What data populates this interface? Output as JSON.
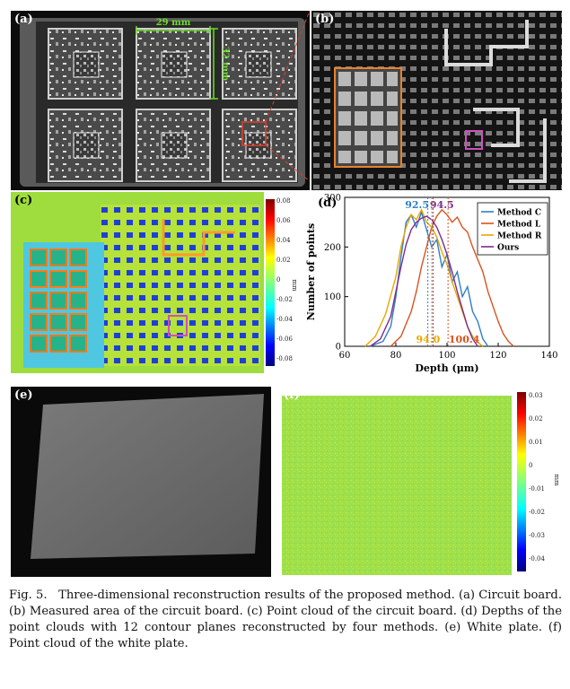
{
  "panels": {
    "a": {
      "label": "(a)",
      "width_annotation": "29 mm",
      "height_annotation": "32 mm"
    },
    "b": {
      "label": "(b)"
    },
    "c": {
      "label": "(c)",
      "colorbar_ticks": [
        "0.08",
        "0.06",
        "0.04",
        "0.02",
        "0",
        "-0.02",
        "-0.04",
        "-0.06",
        "-0.08"
      ],
      "colorbar_unit": "mm"
    },
    "e": {
      "label": "(e)"
    },
    "f": {
      "label": "(f)",
      "colorbar_ticks": [
        "0.03",
        "0.02",
        "0.01",
        "0",
        "-0.01",
        "-0.02",
        "-0.03",
        "-0.04"
      ],
      "colorbar_unit": "mm"
    }
  },
  "chart_data": {
    "panel_label": "(d)",
    "type": "line",
    "xlabel": "Depth (μm)",
    "ylabel": "Number of points",
    "xlim": [
      60,
      140
    ],
    "ylim": [
      0,
      300
    ],
    "xticks": [
      "60",
      "80",
      "100",
      "120",
      "140"
    ],
    "yticks": [
      "0",
      "100",
      "200",
      "300"
    ],
    "legend_position": "top-right",
    "series": [
      {
        "name": "Method C",
        "color": "#2f7fc8",
        "x": [
          70,
          75,
          78,
          80,
          82,
          84,
          86,
          88,
          90,
          92,
          94,
          96,
          98,
          100,
          102,
          104,
          106,
          108,
          110,
          112,
          114,
          116
        ],
        "y": [
          0,
          10,
          40,
          100,
          180,
          250,
          265,
          240,
          270,
          235,
          200,
          215,
          160,
          185,
          130,
          150,
          100,
          120,
          70,
          50,
          15,
          0
        ]
      },
      {
        "name": "Method L",
        "color": "#d9531e",
        "x": [
          78,
          82,
          86,
          88,
          90,
          92,
          94,
          96,
          98,
          100,
          102,
          104,
          106,
          108,
          110,
          112,
          114,
          116,
          118,
          120,
          122,
          124,
          126
        ],
        "y": [
          0,
          20,
          70,
          110,
          160,
          200,
          240,
          262,
          275,
          265,
          250,
          260,
          240,
          230,
          200,
          175,
          150,
          110,
          80,
          50,
          25,
          10,
          0
        ]
      },
      {
        "name": "Method R",
        "color": "#e8a600",
        "x": [
          68,
          72,
          76,
          80,
          82,
          84,
          86,
          88,
          90,
          92,
          94,
          96,
          98,
          100,
          102,
          104,
          106,
          108,
          110,
          112,
          114
        ],
        "y": [
          0,
          20,
          65,
          140,
          200,
          240,
          265,
          255,
          275,
          250,
          240,
          220,
          190,
          165,
          130,
          100,
          70,
          40,
          20,
          8,
          0
        ]
      },
      {
        "name": "Ours",
        "color": "#7b2d8e",
        "x": [
          70,
          74,
          78,
          80,
          82,
          84,
          86,
          88,
          90,
          92,
          94,
          96,
          98,
          100,
          102,
          104,
          106,
          108,
          110,
          112
        ],
        "y": [
          0,
          15,
          60,
          110,
          160,
          205,
          235,
          250,
          258,
          262,
          255,
          240,
          215,
          185,
          150,
          110,
          75,
          40,
          15,
          0
        ]
      }
    ],
    "annotations": [
      {
        "text": "92.5",
        "color": "#2f7fc8",
        "x": 92.5
      },
      {
        "text": "94.5",
        "color": "#7b2d8e",
        "x": 94.5
      },
      {
        "text": "94.0",
        "color": "#e8a600",
        "x": 94.0
      },
      {
        "text": "100.4",
        "color": "#d9531e",
        "x": 100.4
      }
    ]
  },
  "caption": {
    "fig": "Fig. 5.",
    "text": "Three-dimensional reconstruction results of the proposed method. (a) Circuit board. (b) Measured area of the circuit board. (c) Point cloud of the circuit board. (d) Depths of the point clouds with 12 contour planes reconstructed by four methods. (e) White plate. (f) Point cloud of the white plate."
  },
  "colors": {
    "accent_orange": "#e8822a",
    "accent_magenta": "#d04fc0",
    "dim_green": "#6ddc2a",
    "zoom_red": "#e0402a"
  }
}
